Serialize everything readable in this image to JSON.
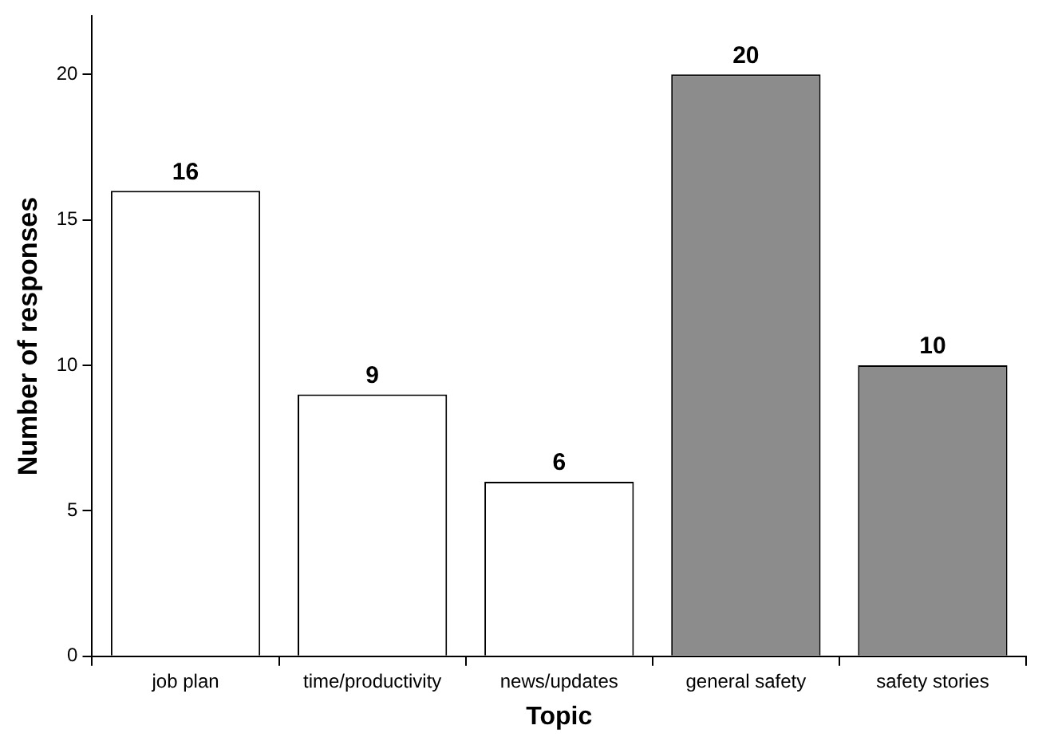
{
  "chart_data": {
    "type": "bar",
    "xlabel": "Topic",
    "ylabel": "Number of responses",
    "categories": [
      "job plan",
      "time/productivity",
      "news/updates",
      "general safety",
      "safety stories"
    ],
    "values": [
      16,
      9,
      6,
      20,
      10
    ],
    "colors": [
      "#ffffff",
      "#ffffff",
      "#ffffff",
      "#8c8c8c",
      "#8c8c8c"
    ],
    "ylim": [
      0,
      22
    ],
    "yticks": [
      0,
      5,
      10,
      15,
      20
    ],
    "grid": false,
    "legend": false,
    "data_labels": true
  }
}
